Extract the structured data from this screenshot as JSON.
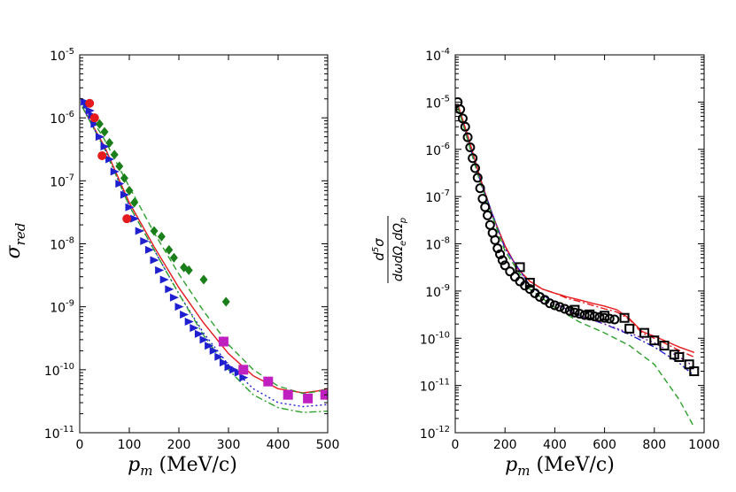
{
  "chart_data": [
    {
      "type": "scatter",
      "xlabel_var": "p",
      "xlabel_sub": "m",
      "xlabel_unit": " (MeV/c)",
      "ylabel_var": "σ",
      "ylabel_sub": "red",
      "xlim": [
        0,
        500
      ],
      "xticks": [
        "0",
        "100",
        "200",
        "300",
        "400",
        "500"
      ],
      "xtick_values": [
        0,
        100,
        200,
        300,
        400,
        500
      ],
      "yscale": "log",
      "ylim_exp": [
        -11,
        -5
      ],
      "yticks": [
        {
          "base": "10",
          "exp": "-5"
        },
        {
          "base": "10",
          "exp": "-6"
        },
        {
          "base": "10",
          "exp": "-7"
        },
        {
          "base": "10",
          "exp": "-8"
        },
        {
          "base": "10",
          "exp": "-9"
        },
        {
          "base": "10",
          "exp": "-10"
        },
        {
          "base": "10",
          "exp": "-11"
        }
      ],
      "ytick_exps": [
        -5,
        -6,
        -7,
        -8,
        -9,
        -10,
        -11
      ],
      "grid": false,
      "curves": [
        {
          "color": "#e41a1c",
          "style": "solid",
          "x": [
            5,
            50,
            100,
            150,
            200,
            250,
            300,
            350,
            400,
            450,
            480,
            500
          ],
          "y": [
            1.5e-06,
            3.5e-07,
            4.5e-08,
            9e-09,
            2e-09,
            5.5e-10,
            1.8e-10,
            8e-11,
            5e-11,
            4.3e-11,
            4.6e-11,
            5e-11
          ]
        },
        {
          "color": "#2ca02c",
          "style": "dashed",
          "x": [
            5,
            50,
            100,
            150,
            200,
            250,
            300,
            350,
            400,
            450,
            480,
            500
          ],
          "y": [
            1.7e-06,
            4.5e-07,
            8e-08,
            1.5e-08,
            3.3e-09,
            8.5e-10,
            2.5e-10,
            1e-10,
            5.5e-11,
            4.2e-11,
            4.5e-11,
            5e-11
          ]
        },
        {
          "color": "#1f1fd0",
          "style": "dotted",
          "x": [
            5,
            50,
            100,
            150,
            200,
            250,
            300,
            350,
            400,
            450,
            500
          ],
          "y": [
            1.5e-06,
            3.3e-07,
            4e-08,
            8e-09,
            1.6e-09,
            3.8e-10,
            1.2e-10,
            5e-11,
            3e-11,
            2.6e-11,
            2.8e-11
          ]
        },
        {
          "color": "#2ca02c",
          "style": "dashdot",
          "x": [
            5,
            50,
            100,
            150,
            200,
            250,
            300,
            350,
            400,
            450,
            500
          ],
          "y": [
            1.5e-06,
            3.2e-07,
            4e-08,
            8e-09,
            1.6e-09,
            3.5e-10,
            1e-10,
            4e-11,
            2.5e-11,
            2.1e-11,
            2.2e-11
          ]
        }
      ],
      "series": [
        {
          "marker": "triangle",
          "color": "#1f1fd0",
          "x": [
            10,
            15,
            20,
            25,
            30,
            40,
            50,
            60,
            70,
            80,
            90,
            100,
            110,
            120,
            130,
            140,
            150,
            160,
            170,
            180,
            190,
            200,
            210,
            220,
            230,
            240,
            250,
            260,
            270,
            280,
            290,
            300,
            310,
            320,
            330
          ],
          "y": [
            1.8e-06,
            1.6e-06,
            1.3e-06,
            1.1e-06,
            8e-07,
            5e-07,
            3.5e-07,
            2.2e-07,
            1.4e-07,
            9e-08,
            6e-08,
            3.8e-08,
            2.5e-08,
            1.6e-08,
            1.1e-08,
            8e-09,
            5.5e-09,
            3.8e-09,
            2.7e-09,
            1.9e-09,
            1.4e-09,
            1e-09,
            7.5e-10,
            5.8e-10,
            4.6e-10,
            3.7e-10,
            3e-10,
            2.4e-10,
            2e-10,
            1.6e-10,
            1.3e-10,
            1.1e-10,
            1e-10,
            9e-11,
            7.5e-11
          ]
        },
        {
          "marker": "circle",
          "color": "#e41a1c",
          "x": [
            20,
            30,
            45,
            95
          ],
          "y": [
            1.7e-06,
            1e-06,
            2.5e-07,
            2.5e-08
          ]
        },
        {
          "marker": "diamond",
          "color": "#1a7f1a",
          "x": [
            40,
            50,
            60,
            70,
            80,
            90,
            100,
            110,
            150,
            165,
            180,
            190,
            210,
            220,
            250,
            295
          ],
          "y": [
            8e-07,
            6e-07,
            4e-07,
            2.6e-07,
            1.7e-07,
            1.1e-07,
            7e-08,
            4.5e-08,
            1.6e-08,
            1.3e-08,
            8e-09,
            6e-09,
            4.2e-09,
            3.8e-09,
            2.7e-09,
            1.2e-09
          ]
        },
        {
          "marker": "square",
          "color": "#c020c0",
          "x": [
            290,
            330,
            380,
            420,
            460,
            495
          ],
          "y": [
            2.8e-10,
            1e-10,
            6.5e-11,
            4e-11,
            3.5e-11,
            4e-11
          ]
        }
      ]
    },
    {
      "type": "scatter",
      "xlabel_var": "p",
      "xlabel_sub": "m",
      "xlabel_unit": " (MeV/c)",
      "ylabel_frac_num": "d",
      "ylabel_frac_num_sup": "5",
      "ylabel_frac_num_sym": "σ",
      "ylabel_frac_den": "dωdΩ",
      "ylabel_frac_den_sub1": "e",
      "ylabel_frac_den_mid": "dΩ",
      "ylabel_frac_den_sub2": "p",
      "xlim": [
        0,
        1000
      ],
      "xticks": [
        "0",
        "200",
        "400",
        "600",
        "800",
        "1000"
      ],
      "xtick_values": [
        0,
        200,
        400,
        600,
        800,
        1000
      ],
      "yscale": "log",
      "ylim_exp": [
        -12,
        -4
      ],
      "yticks": [
        {
          "base": "10",
          "exp": "-4"
        },
        {
          "base": "10",
          "exp": "-5"
        },
        {
          "base": "10",
          "exp": "-6"
        },
        {
          "base": "10",
          "exp": "-7"
        },
        {
          "base": "10",
          "exp": "-8"
        },
        {
          "base": "10",
          "exp": "-9"
        },
        {
          "base": "10",
          "exp": "-10"
        },
        {
          "base": "10",
          "exp": "-11"
        },
        {
          "base": "10",
          "exp": "-12"
        }
      ],
      "ytick_exps": [
        -4,
        -5,
        -6,
        -7,
        -8,
        -9,
        -10,
        -11,
        -12
      ],
      "grid": false,
      "curves": [
        {
          "color": "#e41a1c",
          "style": "solid",
          "x": [
            10,
            50,
            100,
            150,
            200,
            250,
            300,
            350,
            400,
            450,
            500,
            550,
            600,
            650,
            700,
            750,
            800,
            850,
            900,
            960
          ],
          "y": [
            9e-06,
            2e-06,
            2.5e-07,
            4e-08,
            9e-09,
            3e-09,
            1.6e-09,
            1.1e-09,
            9e-10,
            7.5e-10,
            6.5e-10,
            5.5e-10,
            4.8e-10,
            4e-10,
            2.6e-10,
            1.4e-10,
            1.1e-10,
            8.5e-11,
            6.5e-11,
            5e-11
          ]
        },
        {
          "color": "#e41a1c",
          "style": "dashdot",
          "x": [
            10,
            50,
            100,
            150,
            200,
            250,
            300,
            350,
            400,
            450,
            500,
            550,
            600,
            650,
            700,
            750,
            800,
            850,
            900,
            960
          ],
          "y": [
            9e-06,
            2e-06,
            2.5e-07,
            4e-08,
            9e-09,
            3e-09,
            1.6e-09,
            1.1e-09,
            9e-10,
            7e-10,
            6e-10,
            5e-10,
            4.2e-10,
            3.6e-10,
            2.5e-10,
            1.3e-10,
            1e-10,
            7.5e-11,
            5.5e-11,
            4e-11
          ]
        },
        {
          "color": "#1f1fd0",
          "style": "dashdot",
          "x": [
            10,
            100,
            200,
            300,
            400,
            500,
            600,
            700,
            800,
            900,
            960
          ],
          "y": [
            8e-06,
            2.2e-07,
            8e-09,
            1.3e-09,
            5.5e-10,
            3e-10,
            2e-10,
            1.2e-10,
            6.5e-11,
            3e-11,
            1.6e-11
          ]
        },
        {
          "color": "#7b1fa2",
          "style": "dotted",
          "x": [
            10,
            100,
            200,
            300,
            400,
            500,
            600,
            700,
            800,
            900,
            960
          ],
          "y": [
            8e-06,
            2.2e-07,
            8e-09,
            1.3e-09,
            5.5e-10,
            3e-10,
            2e-10,
            1.3e-10,
            8e-11,
            4e-11,
            2.5e-11
          ]
        },
        {
          "color": "#2ca02c",
          "style": "dashed",
          "x": [
            10,
            100,
            200,
            300,
            400,
            500,
            600,
            700,
            800,
            900,
            960
          ],
          "y": [
            8e-06,
            2e-07,
            7e-09,
            1.1e-09,
            4.5e-10,
            2.2e-10,
            1.3e-10,
            7e-11,
            2.8e-11,
            5e-12,
            1.3e-12
          ]
        }
      ],
      "series": [
        {
          "marker": "circle",
          "color": "#000000",
          "x": [
            10,
            20,
            30,
            40,
            50,
            60,
            70,
            80,
            90,
            100,
            110,
            120,
            130,
            140,
            150,
            160,
            170,
            180,
            190,
            200,
            220,
            240,
            260,
            280,
            300,
            320,
            340,
            360,
            380,
            400,
            420,
            440,
            460,
            480,
            500,
            520,
            540,
            560,
            580,
            600,
            620,
            640
          ],
          "y": [
            1e-05,
            7e-06,
            4.5e-06,
            3e-06,
            1.8e-06,
            1.1e-06,
            6.5e-07,
            4e-07,
            2.5e-07,
            1.5e-07,
            9e-08,
            6e-08,
            4e-08,
            2.5e-08,
            1.7e-08,
            1.2e-08,
            8e-09,
            6e-09,
            4.5e-09,
            3.5e-09,
            2.6e-09,
            2e-09,
            1.6e-09,
            1.3e-09,
            1.1e-09,
            9e-10,
            7.5e-10,
            6.5e-10,
            5.5e-10,
            5e-10,
            4.6e-10,
            4.2e-10,
            3.8e-10,
            3.5e-10,
            3.3e-10,
            3.1e-10,
            3e-10,
            2.9e-10,
            2.8e-10,
            2.7e-10,
            2.6e-10,
            2.5e-10
          ]
        },
        {
          "marker": "square",
          "color": "#000000",
          "x": [
            260,
            300,
            480,
            540,
            600,
            680,
            700,
            760,
            800,
            840,
            880,
            900,
            940,
            960
          ],
          "y": [
            3.2e-09,
            1.5e-09,
            4e-10,
            3.2e-10,
            3e-10,
            2.7e-10,
            1.6e-10,
            1.3e-10,
            9e-11,
            7e-11,
            4.5e-11,
            4e-11,
            2.8e-11,
            2e-11
          ]
        }
      ]
    }
  ]
}
